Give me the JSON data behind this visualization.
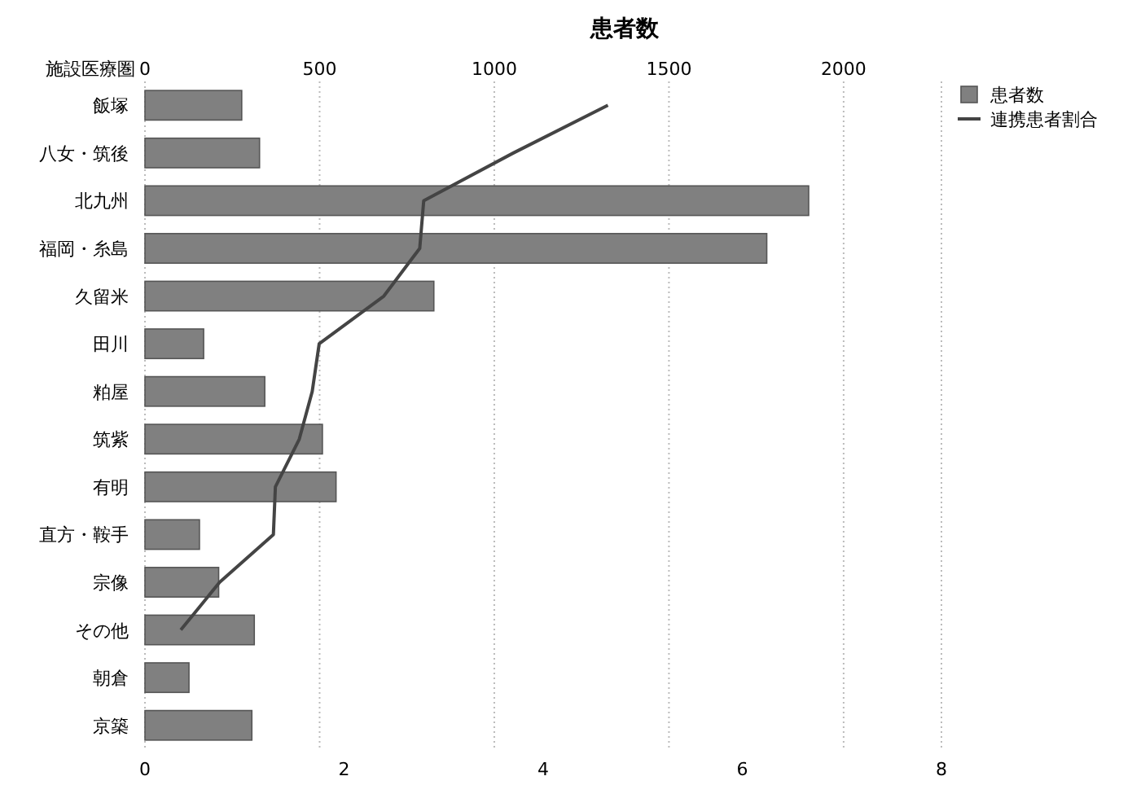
{
  "chart_data": {
    "type": "bar",
    "orientation": "horizontal",
    "title": "患者数",
    "ylabel": "施設医療圏",
    "categories": [
      "飯塚",
      "八女・筑後",
      "北九州",
      "福岡・糸島",
      "久留米",
      "田川",
      "粕屋",
      "筑紫",
      "有明",
      "直方・鞍手",
      "宗像",
      "その他",
      "朝倉",
      "京築"
    ],
    "series": [
      {
        "name": "患者数",
        "axis": "x2",
        "color": "#808080",
        "values": [
          277,
          328,
          1900,
          1780,
          827,
          168,
          343,
          508,
          547,
          156,
          211,
          313,
          126,
          306
        ]
      },
      {
        "name": "連携患者割合",
        "type": "line",
        "color": "#444444",
        "values": [
          4.65,
          3.7,
          2.8,
          2.76,
          2.4,
          1.75,
          1.68,
          1.55,
          1.31,
          1.29,
          0.75,
          0.36,
          null,
          null
        ]
      }
    ],
    "xlim": [
      0,
      8
    ],
    "xticks": [
      0,
      2,
      4,
      6,
      8
    ],
    "x2lim": [
      0,
      2280
    ],
    "x2ticks": [
      0,
      500,
      1000,
      1500,
      2000
    ],
    "grid": "x",
    "legend": "top right",
    "line_style": "solid",
    "marker": "none"
  }
}
